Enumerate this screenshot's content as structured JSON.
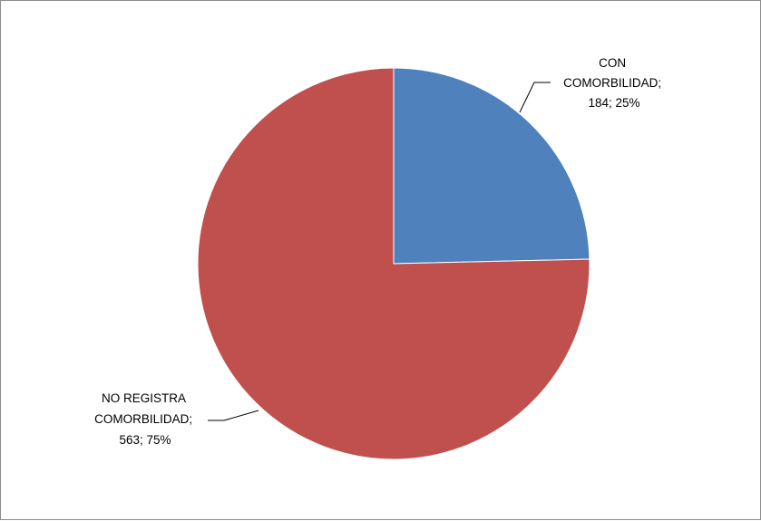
{
  "chart_data": {
    "type": "pie",
    "slices": [
      {
        "name": "CON COMORBILIDAD",
        "value": 184,
        "percent": 25,
        "color": "#4f81bd",
        "label_lines": [
          "CON",
          "COMORBILIDAD;",
          "184; 25%"
        ]
      },
      {
        "name": "NO REGISTRA COMORBILIDAD",
        "value": 563,
        "percent": 75,
        "color": "#c0504d",
        "label_lines": [
          "NO REGISTRA",
          "COMORBILIDAD;",
          "563; 75%"
        ]
      }
    ],
    "legend": "none",
    "start_angle": "12 o'clock",
    "direction": "clockwise"
  }
}
